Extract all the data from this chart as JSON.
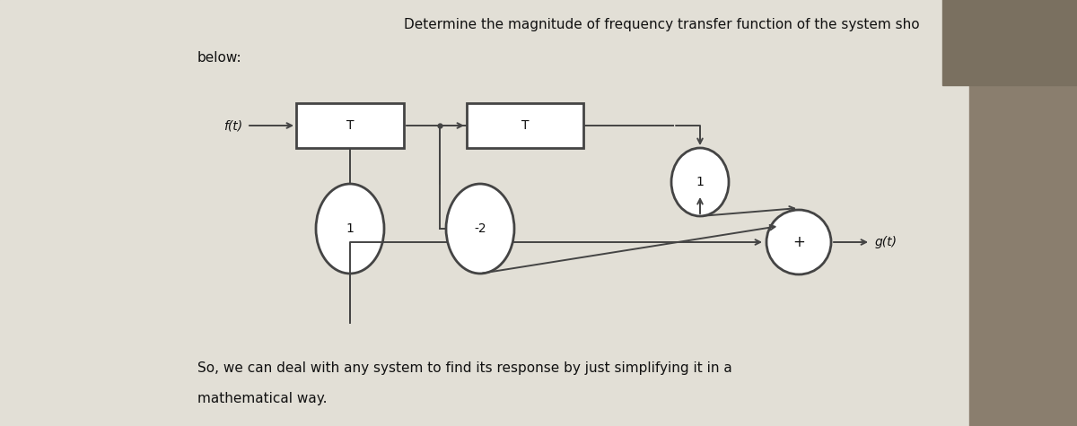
{
  "bg_color": "#c8c4b8",
  "paper_color": "#e2dfd6",
  "title_line1": "Determine the magnitude of frequency transfer function of the system sho",
  "title_line2": "below:",
  "bottom_text_line1": "So, we can deal with any system to find its response by just simplifying it in a",
  "bottom_text_line2": "mathematical way.",
  "ft_label": "f(t)",
  "gt_label": "g(t)",
  "box1_label": "T",
  "box2_label": "T",
  "circle1_label": "1",
  "circle2_label": "-2",
  "circle3_label": "1",
  "sum_label": "+",
  "line_color": "#444444",
  "text_color": "#111111",
  "font_size_title": 11,
  "font_size_labels": 10,
  "font_size_box": 10,
  "font_size_circle": 10,
  "font_size_sum": 12,
  "font_size_bottom": 11
}
